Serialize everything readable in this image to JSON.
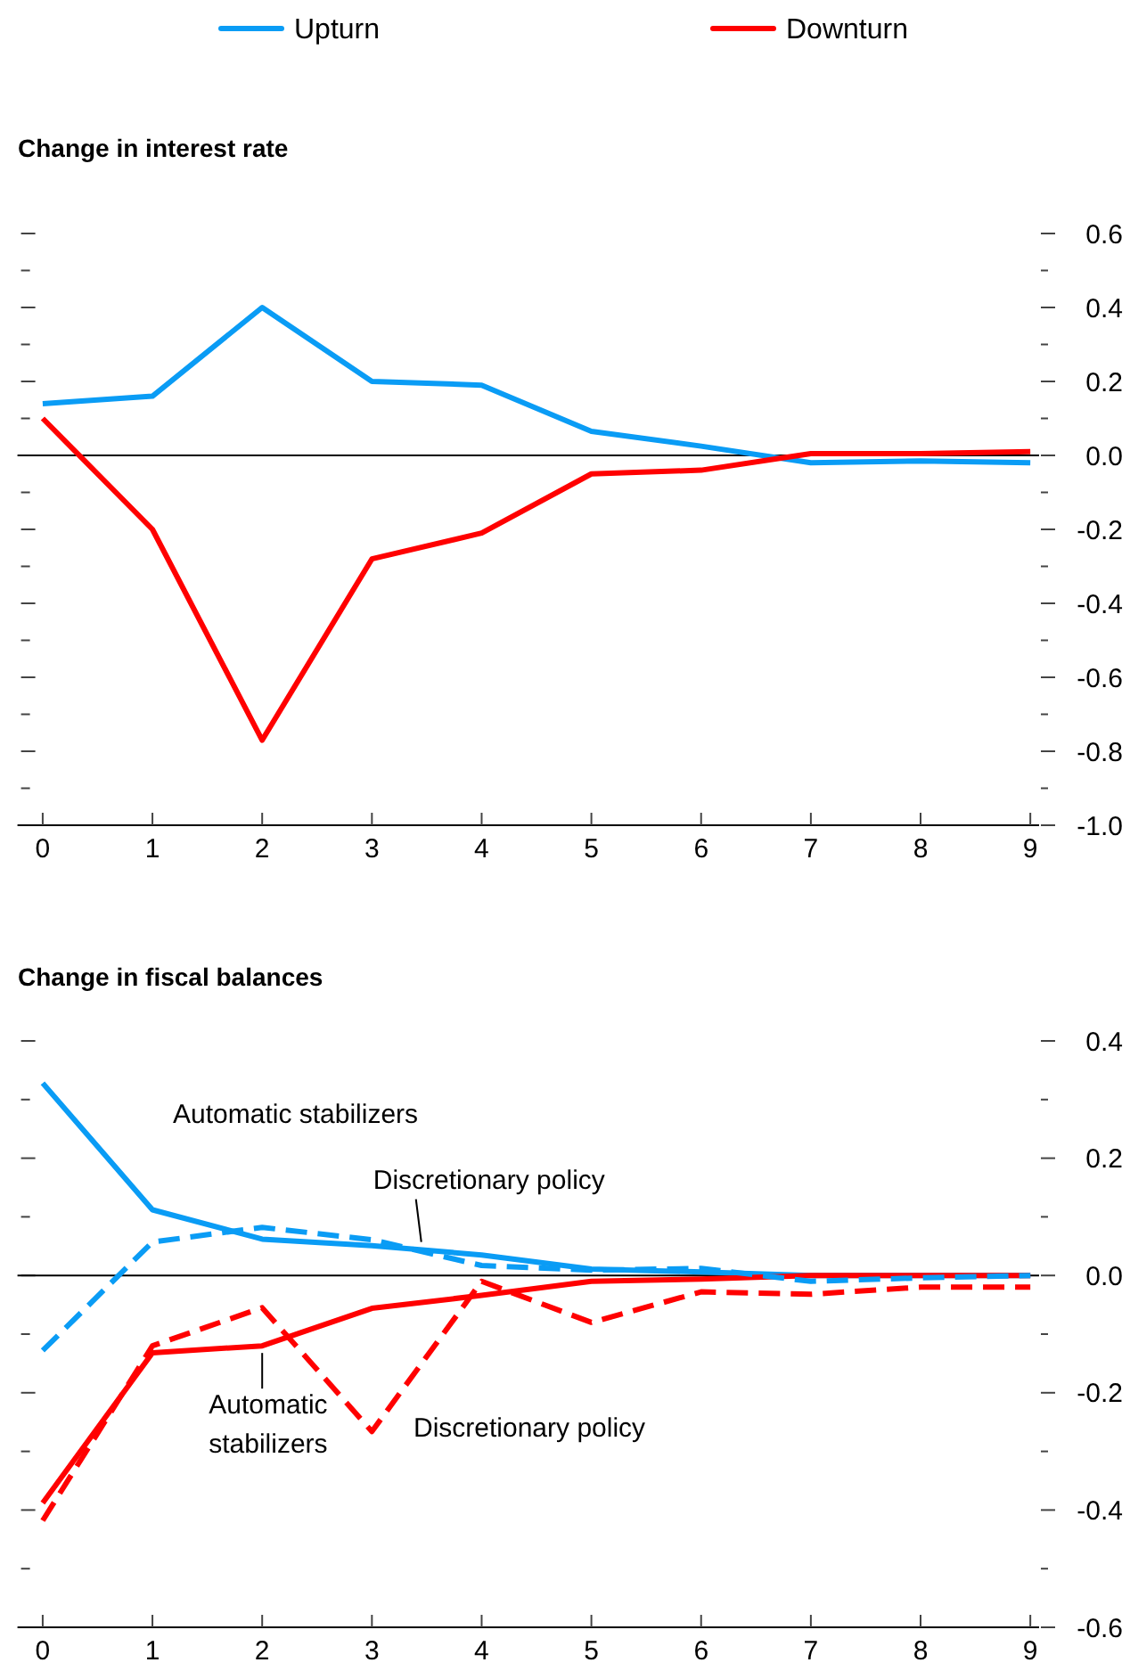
{
  "chart_data": [
    {
      "type": "line",
      "title": "Change in interest rate",
      "x": [
        0,
        1,
        2,
        3,
        4,
        5,
        6,
        7,
        8,
        9
      ],
      "xlim": [
        -0.23,
        9.08
      ],
      "xticks": [
        0,
        1,
        2,
        3,
        4,
        5,
        6,
        7,
        8,
        9
      ],
      "ylim": [
        -1.0,
        0.6
      ],
      "yticks": [
        {
          "value": -1.0,
          "label": "-1.0"
        },
        {
          "value": -0.9,
          "label": null
        },
        {
          "value": -0.8,
          "label": "-0.8"
        },
        {
          "value": -0.7,
          "label": null
        },
        {
          "value": -0.6,
          "label": "-0.6"
        },
        {
          "value": -0.5,
          "label": null
        },
        {
          "value": -0.4,
          "label": "-0.4"
        },
        {
          "value": -0.3,
          "label": null
        },
        {
          "value": -0.2,
          "label": "-0.2"
        },
        {
          "value": -0.1,
          "label": null
        },
        {
          "value": 0,
          "label": "0.0"
        },
        {
          "value": 0.1,
          "label": null
        },
        {
          "value": 0.2,
          "label": "0.2"
        },
        {
          "value": 0.3,
          "label": null
        },
        {
          "value": 0.4,
          "label": "0.4"
        },
        {
          "value": 0.5,
          "label": null
        },
        {
          "value": 0.6,
          "label": "0.6"
        }
      ],
      "legend": "top",
      "grid": false,
      "ref_lines": [
        {
          "axis": "y",
          "value": 0
        }
      ],
      "series": [
        {
          "name": "Upturn",
          "color": "#0a9cf5",
          "line_style": "solid",
          "values": [
            0.14,
            0.16,
            0.4,
            0.2,
            0.19,
            0.065,
            0.025,
            -0.02,
            -0.015,
            -0.02
          ]
        },
        {
          "name": "Downturn",
          "color": "#ff0000",
          "line_style": "solid",
          "values": [
            0.1,
            -0.2,
            -0.77,
            -0.28,
            -0.21,
            -0.05,
            -0.04,
            0.005,
            0.005,
            0.01
          ]
        }
      ]
    },
    {
      "type": "line",
      "title": "Change in fiscal balances",
      "x": [
        0,
        1,
        2,
        3,
        4,
        5,
        6,
        7,
        8,
        9
      ],
      "xlim": [
        -0.23,
        9.08
      ],
      "xticks": [
        0,
        1,
        2,
        3,
        4,
        5,
        6,
        7,
        8,
        9
      ],
      "ylim": [
        -0.6,
        0.4
      ],
      "yticks": [
        {
          "value": -0.6,
          "label": "-0.6"
        },
        {
          "value": -0.5,
          "label": null
        },
        {
          "value": -0.4,
          "label": "-0.4"
        },
        {
          "value": -0.3,
          "label": null
        },
        {
          "value": -0.2,
          "label": "-0.2"
        },
        {
          "value": -0.1,
          "label": null
        },
        {
          "value": 0,
          "label": "0.0"
        },
        {
          "value": 0.1,
          "label": null
        },
        {
          "value": 0.2,
          "label": "0.2"
        },
        {
          "value": 0.3,
          "label": null
        },
        {
          "value": 0.4,
          "label": "0.4"
        }
      ],
      "grid": false,
      "ref_lines": [
        {
          "axis": "y",
          "value": 0
        }
      ],
      "annotations": [
        "Automatic stabilizers",
        {
          "text": "Discretionary policy",
          "x": 3.45,
          "y": 0.045
        },
        {
          "text": "Automatic stabilizers",
          "x": 2,
          "y": -0.12
        },
        "Discretionary policy"
      ],
      "series": [
        {
          "color": "#0a9cf5",
          "line_style": "solid",
          "values": [
            0.328,
            0.112,
            0.062,
            0.051,
            0.035,
            0.011,
            0.006,
            0,
            0,
            0
          ]
        },
        {
          "color": "#ff0000",
          "line_style": "solid",
          "values": [
            -0.388,
            -0.132,
            -0.12,
            -0.056,
            -0.034,
            -0.01,
            -0.006,
            0,
            0,
            0
          ]
        },
        {
          "color": "#0a9cf5",
          "line_style": "dashed",
          "values": [
            -0.128,
            0.057,
            0.082,
            0.061,
            0.017,
            0.009,
            0.012,
            -0.01,
            -0.004,
            0
          ]
        },
        {
          "color": "#ff0000",
          "line_style": "dashed",
          "values": [
            -0.418,
            -0.12,
            -0.055,
            -0.266,
            -0.01,
            -0.08,
            -0.028,
            -0.032,
            -0.02,
            -0.02
          ]
        }
      ]
    }
  ]
}
